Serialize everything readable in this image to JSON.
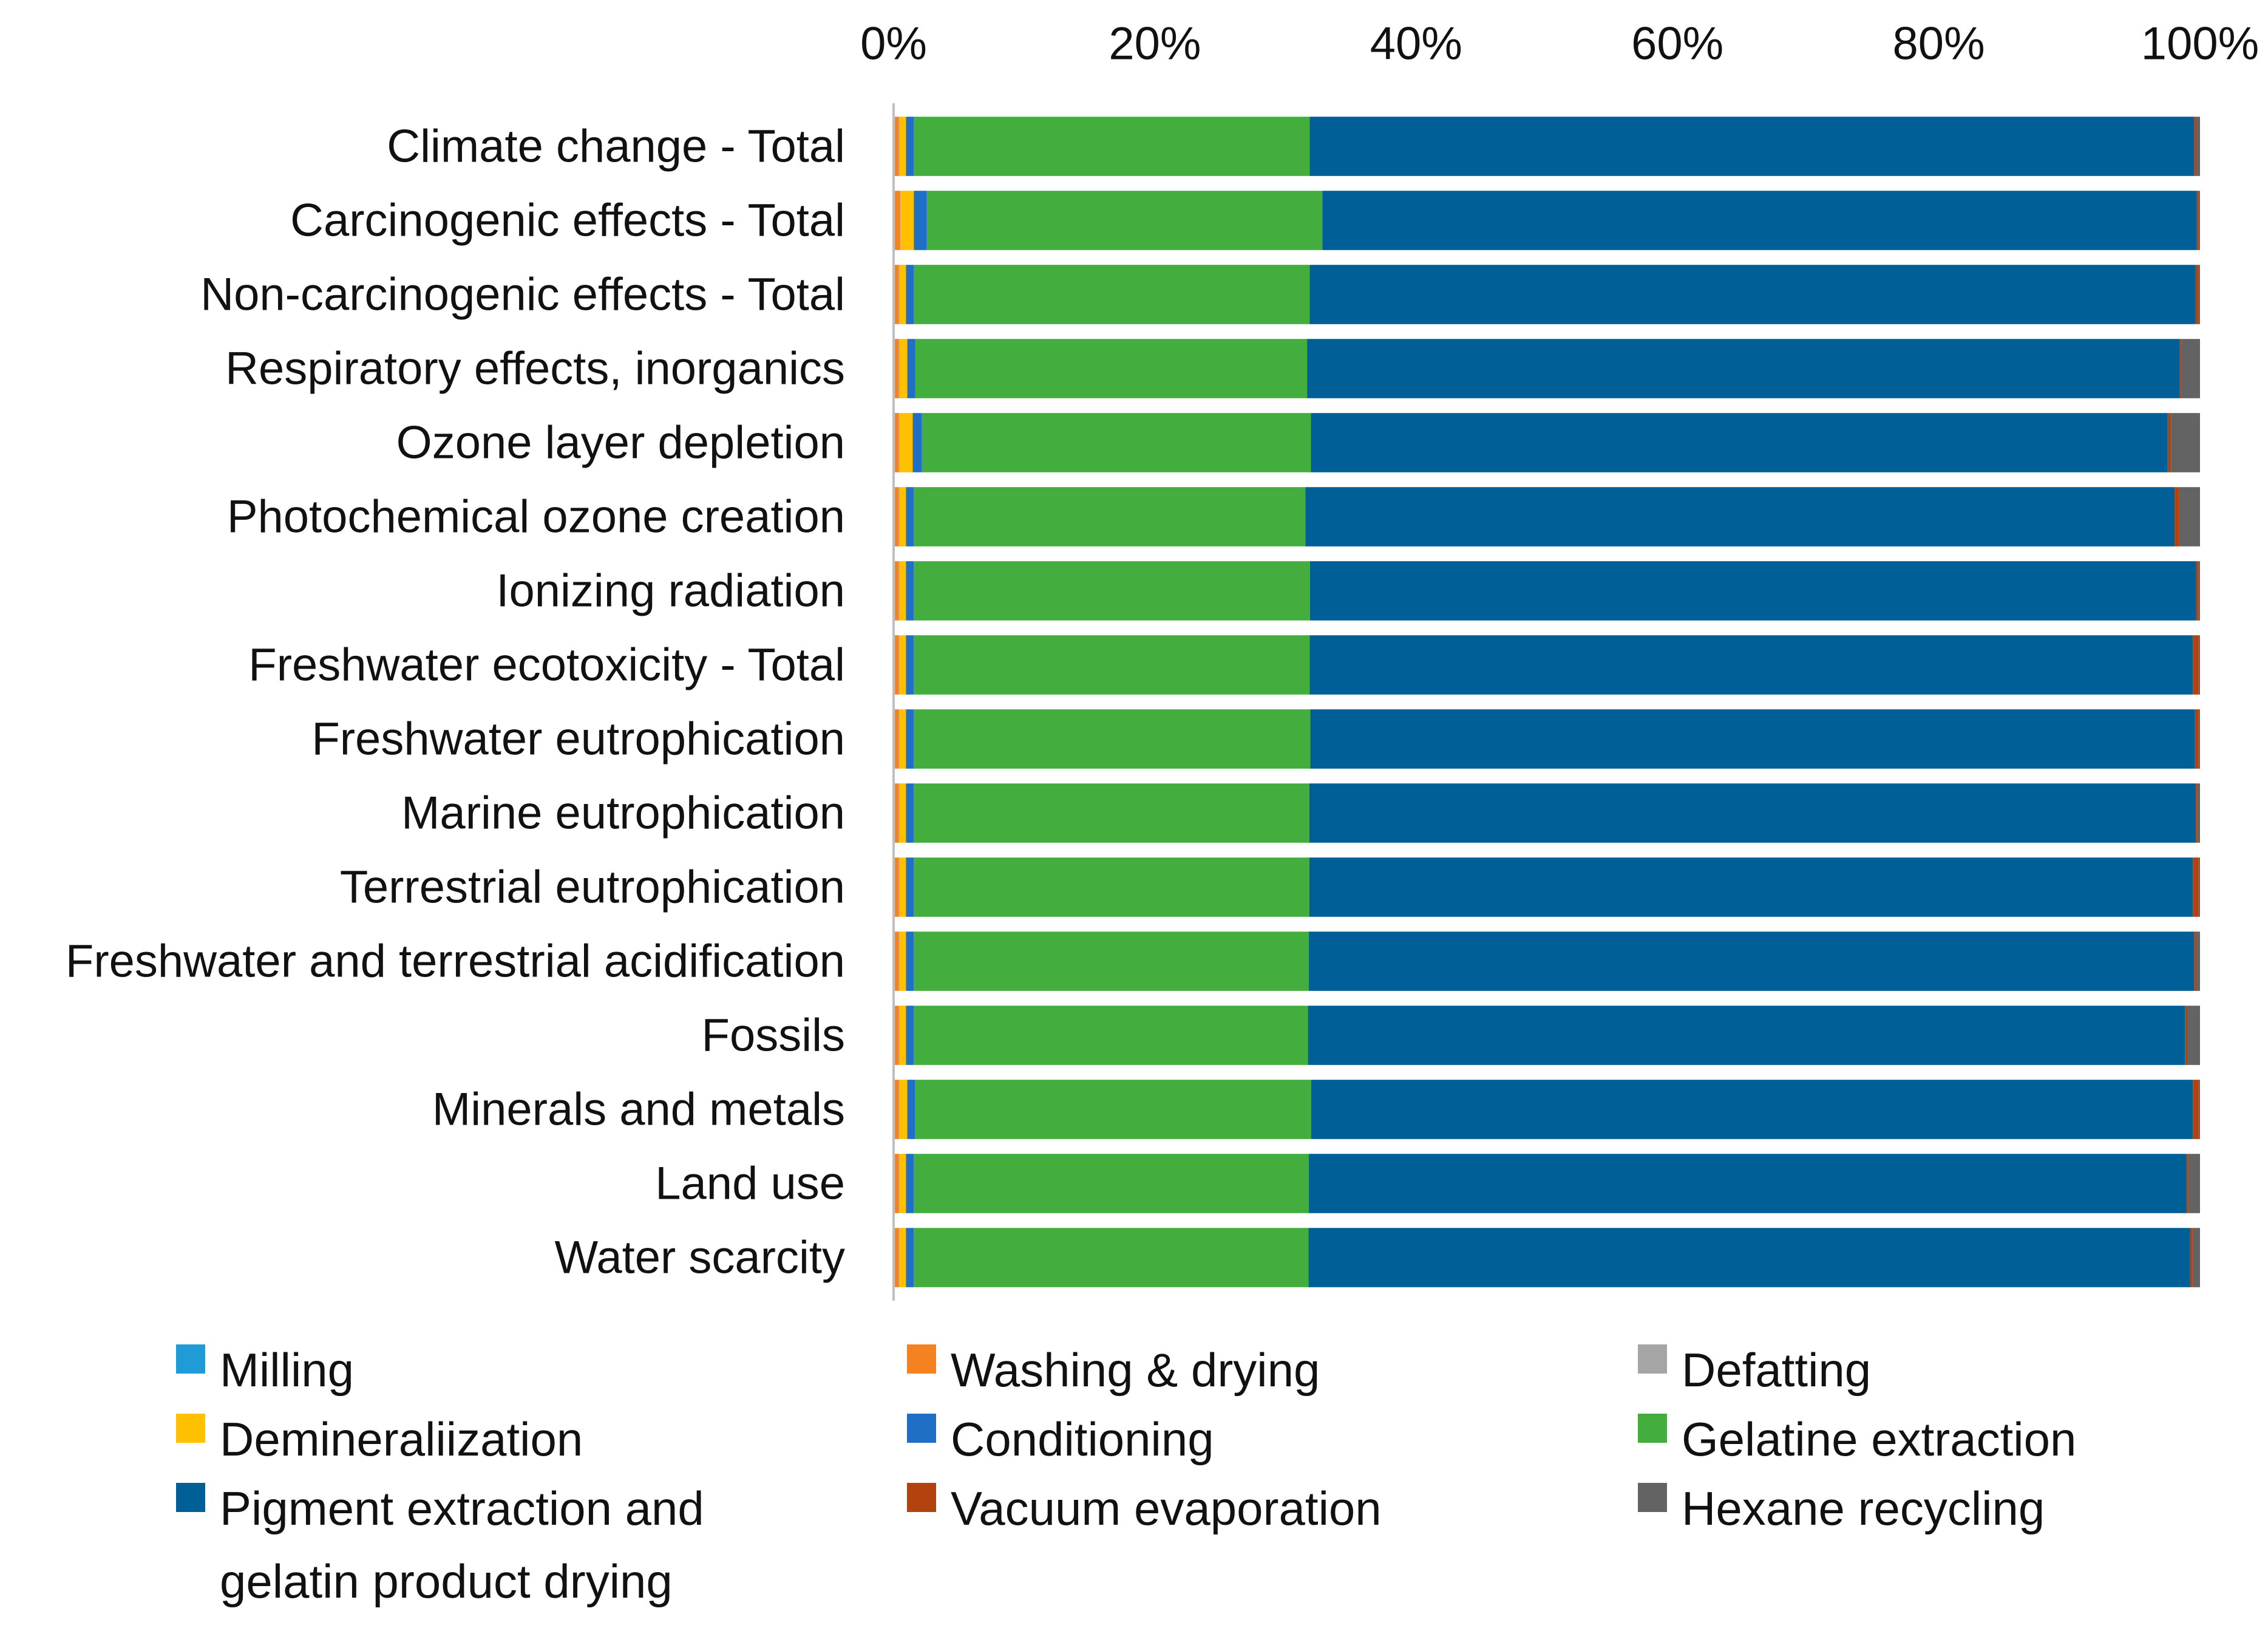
{
  "chart_data": {
    "type": "bar",
    "orientation": "horizontal",
    "stacked": "percent",
    "title": "",
    "xlabel": "",
    "ylabel": "",
    "xlim": [
      0,
      100
    ],
    "x_ticks": [
      "0%",
      "20%",
      "40%",
      "60%",
      "80%",
      "100%"
    ],
    "grid": false,
    "legend_position": "bottom",
    "categories": [
      "Climate change - Total",
      "Carcinogenic effects - Total",
      "Non-carcinogenic effects - Total",
      "Respiratory effects, inorganics",
      "Ozone layer depletion",
      "Photochemical ozone creation",
      "Ionizing radiation",
      "Freshwater ecotoxicity - Total",
      "Freshwater eutrophication",
      "Marine eutrophication",
      "Terrestrial eutrophication",
      "Freshwater and terrestrial acidification",
      "Fossils",
      "Minerals and metals",
      "Land use",
      "Water scarcity"
    ],
    "series": [
      {
        "name": "Milling",
        "color": "#1f9bd7",
        "values": [
          0.1,
          0.1,
          0.1,
          0.1,
          0.1,
          0.1,
          0.1,
          0.1,
          0.1,
          0.1,
          0.1,
          0.1,
          0.1,
          0.1,
          0.1,
          0.1
        ]
      },
      {
        "name": "Washing & drying",
        "color": "#f58220",
        "values": [
          0.3,
          0.4,
          0.3,
          0.3,
          0.3,
          0.3,
          0.3,
          0.3,
          0.3,
          0.3,
          0.3,
          0.3,
          0.3,
          0.3,
          0.3,
          0.3
        ]
      },
      {
        "name": "Defatting",
        "color": "#a5a5a5",
        "values": [
          0.05,
          0.05,
          0.05,
          0.05,
          0.05,
          0.05,
          0.05,
          0.05,
          0.05,
          0.05,
          0.05,
          0.05,
          0.05,
          0.05,
          0.05,
          0.05
        ]
      },
      {
        "name": "Demineraliization",
        "color": "#ffc000",
        "values": [
          0.5,
          1.0,
          0.5,
          0.6,
          1.0,
          0.5,
          0.5,
          0.5,
          0.5,
          0.5,
          0.5,
          0.5,
          0.5,
          0.6,
          0.5,
          0.5
        ]
      },
      {
        "name": "Conditioning",
        "color": "#1f6fc6",
        "values": [
          0.6,
          1.0,
          0.6,
          0.6,
          0.7,
          0.6,
          0.6,
          0.6,
          0.6,
          0.6,
          0.6,
          0.6,
          0.6,
          0.6,
          0.6,
          0.6
        ]
      },
      {
        "name": "Gelatine extraction",
        "color": "#43ae3d",
        "values": [
          30.3,
          30.3,
          30.3,
          30.0,
          29.5,
          30.0,
          30.4,
          30.4,
          30.4,
          30.3,
          30.3,
          30.3,
          30.2,
          30.4,
          30.3,
          30.3
        ]
      },
      {
        "name": "Pigment extraction and\ngelatin product drying",
        "color": "#005f96",
        "values": [
          67.7,
          67.0,
          67.8,
          66.8,
          65.0,
          66.6,
          68.0,
          67.8,
          67.8,
          67.9,
          67.7,
          67.9,
          67.2,
          67.7,
          67.3,
          67.7
        ]
      },
      {
        "name": "Vacuum evaporation",
        "color": "#b2420e",
        "values": [
          0.15,
          0.15,
          0.25,
          0.15,
          0.25,
          0.35,
          0.2,
          0.45,
          0.3,
          0.15,
          0.45,
          0.15,
          0.15,
          0.45,
          0.15,
          0.15
        ]
      },
      {
        "name": "Hexane recycling",
        "color": "#636363",
        "values": [
          0.3,
          0.1,
          0.1,
          1.4,
          2.2,
          1.6,
          0.1,
          0.1,
          0.1,
          0.2,
          0.1,
          0.3,
          1.0,
          0.1,
          0.9,
          0.6
        ]
      }
    ]
  }
}
